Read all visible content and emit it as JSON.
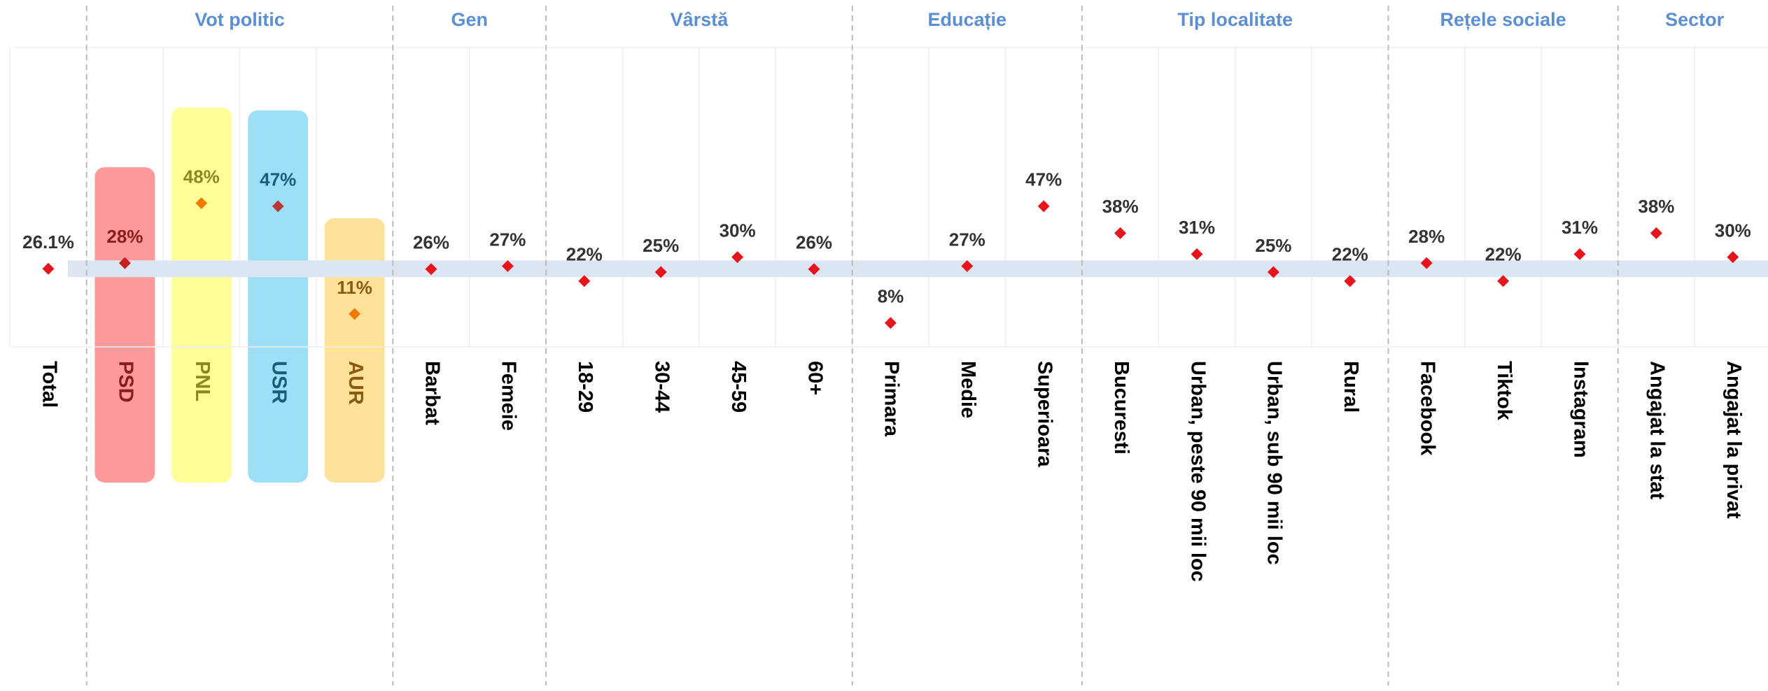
{
  "chart_data": {
    "type": "dot",
    "ylim": [
      0,
      100
    ],
    "color": "#e8141c",
    "band_color": "#dce6f2",
    "groups": [
      {
        "categories": [
          "Total"
        ],
        "values": [
          26.1
        ],
        "value_labels": [
          "26.1%"
        ]
      },
      {
        "name": "Vot politic",
        "categories": [
          "PSD",
          "PNL",
          "USR",
          "AUR"
        ],
        "values": [
          28,
          48,
          47,
          11
        ],
        "value_labels": [
          "28%",
          "48%",
          "47%",
          "11%"
        ],
        "highlight_colors": [
          "#ff9a9c",
          "#ffff99",
          "#9ddff7",
          "#ffe299"
        ],
        "label_colors": [
          "#8b1c1c",
          "#8a8a1e",
          "#1b5b7c",
          "#8a5a12"
        ],
        "marker_colors": [
          "#c81e1e",
          "#f07a00",
          "#b83a3a",
          "#f07a00"
        ]
      },
      {
        "name": "Gen",
        "categories": [
          "Barbat",
          "Femeie"
        ],
        "values": [
          26,
          27
        ],
        "value_labels": [
          "26%",
          "27%"
        ]
      },
      {
        "name": "Vârstă",
        "categories": [
          "18-29",
          "30-44",
          "45-59",
          "60+"
        ],
        "values": [
          22,
          25,
          30,
          26
        ],
        "value_labels": [
          "22%",
          "25%",
          "30%",
          "26%"
        ]
      },
      {
        "name": "Educație",
        "categories": [
          "Primara",
          "Medie",
          "Superioara"
        ],
        "values": [
          8,
          27,
          47
        ],
        "value_labels": [
          "8%",
          "27%",
          "47%"
        ]
      },
      {
        "name": "Tip localitate",
        "categories": [
          "Bucuresti",
          "Urban, peste 90 mii loc",
          "Urban, sub 90 mii loc",
          "Rural"
        ],
        "values": [
          38,
          31,
          25,
          22
        ],
        "value_labels": [
          "38%",
          "31%",
          "25%",
          "22%"
        ]
      },
      {
        "name": "Rețele sociale",
        "categories": [
          "Facebook",
          "Tiktok",
          "Instagram"
        ],
        "values": [
          28,
          22,
          31
        ],
        "value_labels": [
          "28%",
          "22%",
          "31%"
        ]
      },
      {
        "name": "Sector",
        "categories": [
          "Angajat la stat",
          "Angajat la privat"
        ],
        "values": [
          38,
          30
        ],
        "value_labels": [
          "38%",
          "30%"
        ]
      }
    ]
  }
}
